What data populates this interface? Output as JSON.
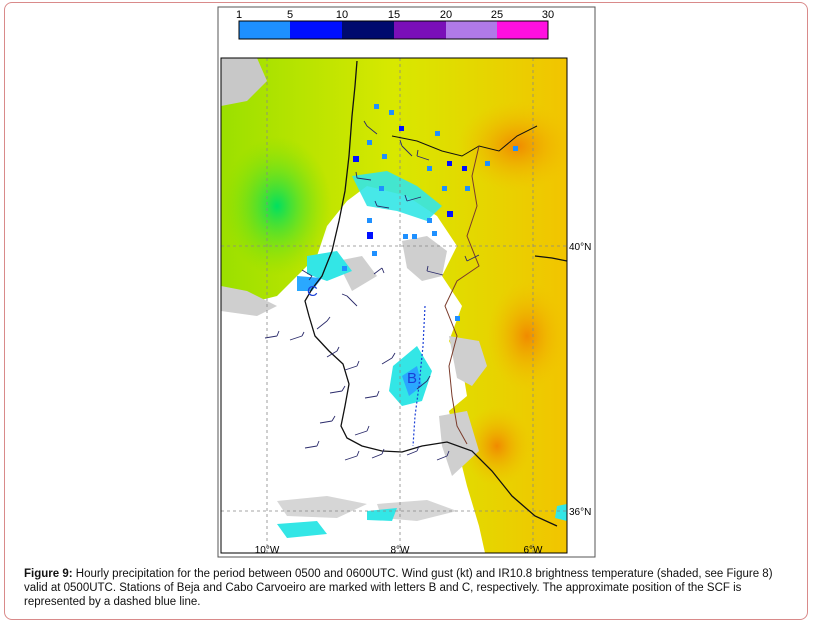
{
  "colorbar": {
    "ticks": [
      "1",
      "5",
      "10",
      "15",
      "20",
      "25",
      "30"
    ],
    "colors": [
      "#1e90ff",
      "#0010ff",
      "#000a6e",
      "#7a0fb8",
      "#b07ae8",
      "#ff10e0"
    ]
  },
  "axes": {
    "lon_labels": [
      "10°W",
      "8°W",
      "6°W"
    ],
    "lat_labels": [
      "40°N",
      "36°N"
    ]
  },
  "stations": {
    "beja": "B",
    "carvoeiro": "C"
  },
  "caption": {
    "label": "Figure 9:",
    "text": " Hourly precipitation for the period between 0500 and 0600UTC. Wind gust (kt) and IR10.8 brightness temperature (shaded, see Figure 8) valid at 0500UTC. Stations of Beja and Cabo Carvoeiro are marked with letters B and C, respectively. The approximate position of the SCF is represented by a dashed blue line."
  },
  "colors": {
    "frame_border": "#d98a8a",
    "scf_line": "#1a3fd6"
  }
}
